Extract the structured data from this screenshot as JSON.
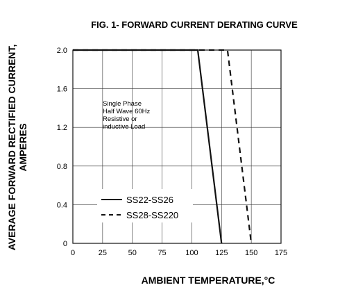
{
  "chart_data": {
    "type": "line",
    "title": "FIG. 1- FORWARD CURRENT DERATING CURVE",
    "xlabel": "AMBIENT TEMPERATURE,°C",
    "ylabel_lines": [
      "AVERAGE FORWARD RECTIFIED CURRENT,",
      "AMPERES"
    ],
    "xlim": [
      0,
      175
    ],
    "ylim": [
      0,
      2.0
    ],
    "x_ticks": [
      "0",
      "25",
      "50",
      "75",
      "100",
      "125",
      "150",
      "175"
    ],
    "y_ticks": [
      "0",
      "0.4",
      "0.8",
      "1.2",
      "1.6",
      "2.0"
    ],
    "grid": true,
    "annotation_lines": [
      "Single Phase",
      "Half Wave 60Hz",
      "Resistive or",
      "inductive Load"
    ],
    "legend_position": "bottom-left",
    "series": [
      {
        "name": "SS22-SS26",
        "style": "solid",
        "x": [
          0,
          105,
          125
        ],
        "y": [
          2.0,
          2.0,
          0
        ]
      },
      {
        "name": "SS28-SS220",
        "style": "dashed",
        "x": [
          0,
          130,
          150
        ],
        "y": [
          2.0,
          2.0,
          0
        ]
      }
    ]
  }
}
